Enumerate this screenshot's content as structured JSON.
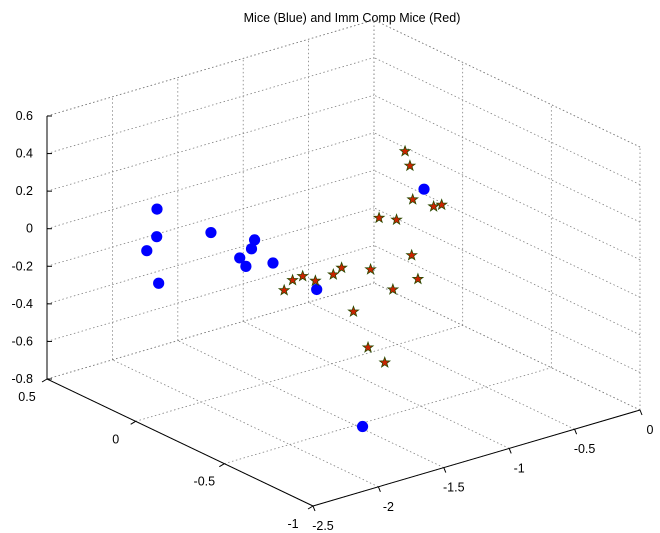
{
  "chart_data": {
    "type": "scatter",
    "title": "Mice (Blue) and Imm Comp Mice (Red)",
    "xlabel": "",
    "ylabel": "",
    "zlabel": "",
    "grid": true,
    "view": "3d",
    "axes": {
      "x": {
        "lim": [
          -2.5,
          0
        ],
        "ticks": [
          "-2.5",
          "-2",
          "-1.5",
          "-1",
          "-0.5",
          "0"
        ]
      },
      "y": {
        "lim": [
          -1,
          0.5
        ],
        "ticks": [
          "-1",
          "-0.5",
          "0",
          "0.5"
        ]
      },
      "z": {
        "lim": [
          -0.8,
          0.6
        ],
        "ticks": [
          "-0.8",
          "-0.6",
          "-0.4",
          "-0.2",
          "0",
          "0.2",
          "0.4",
          "0.6"
        ]
      }
    },
    "series": [
      {
        "color": "#0000ff",
        "marker": "circle",
        "points": [
          {
            "x": -2.12,
            "y": 0.16,
            "z": 0.18
          },
          {
            "x": -2.19,
            "y": 0.11,
            "z": 0.07
          },
          {
            "x": -2.32,
            "y": 0.07,
            "z": 0.04
          },
          {
            "x": -2.27,
            "y": 0.04,
            "z": -0.13
          },
          {
            "x": -2.06,
            "y": -0.1,
            "z": 0.16
          },
          {
            "x": -1.84,
            "y": -0.1,
            "z": -0.02
          },
          {
            "x": -1.82,
            "y": -0.12,
            "z": -0.06
          },
          {
            "x": -1.75,
            "y": -0.1,
            "z": 0.01
          },
          {
            "x": -1.74,
            "y": -0.11,
            "z": 0.06
          },
          {
            "x": -1.64,
            "y": -0.14,
            "z": -0.07
          },
          {
            "x": -1.36,
            "y": -0.18,
            "z": -0.25
          },
          {
            "x": -0.77,
            "y": -0.35,
            "z": 0.24
          },
          {
            "x": -1.85,
            "y": -0.8,
            "z": -0.6
          }
        ]
      },
      {
        "color": "#cc2200",
        "edgecolor": "#2a4a00",
        "marker": "star",
        "points": [
          {
            "x": -0.82,
            "y": -0.28,
            "z": 0.42
          },
          {
            "x": -0.81,
            "y": -0.3,
            "z": 0.35
          },
          {
            "x": -0.87,
            "y": -0.36,
            "z": 0.21
          },
          {
            "x": -0.98,
            "y": -0.35,
            "z": 0.12
          },
          {
            "x": -1.1,
            "y": -0.34,
            "z": 0.15
          },
          {
            "x": -0.73,
            "y": -0.42,
            "z": 0.18
          },
          {
            "x": -0.71,
            "y": -0.36,
            "z": 0.14
          },
          {
            "x": -1.0,
            "y": -0.45,
            "z": -0.02
          },
          {
            "x": -1.02,
            "y": -0.5,
            "z": -0.12
          },
          {
            "x": -1.13,
            "y": -0.44,
            "z": -0.18
          },
          {
            "x": -1.26,
            "y": -0.41,
            "z": -0.06
          },
          {
            "x": -1.4,
            "y": -0.35,
            "z": -0.05
          },
          {
            "x": -1.45,
            "y": -0.34,
            "z": -0.08
          },
          {
            "x": -1.56,
            "y": -0.32,
            "z": -0.1
          },
          {
            "x": -1.63,
            "y": -0.3,
            "z": -0.07
          },
          {
            "x": -1.68,
            "y": -0.28,
            "z": -0.09
          },
          {
            "x": -1.69,
            "y": -0.24,
            "z": -0.16
          },
          {
            "x": -1.35,
            "y": -0.38,
            "z": -0.28
          },
          {
            "x": -1.32,
            "y": -0.44,
            "z": -0.45
          },
          {
            "x": -1.26,
            "y": -0.49,
            "z": -0.52
          }
        ]
      }
    ]
  }
}
